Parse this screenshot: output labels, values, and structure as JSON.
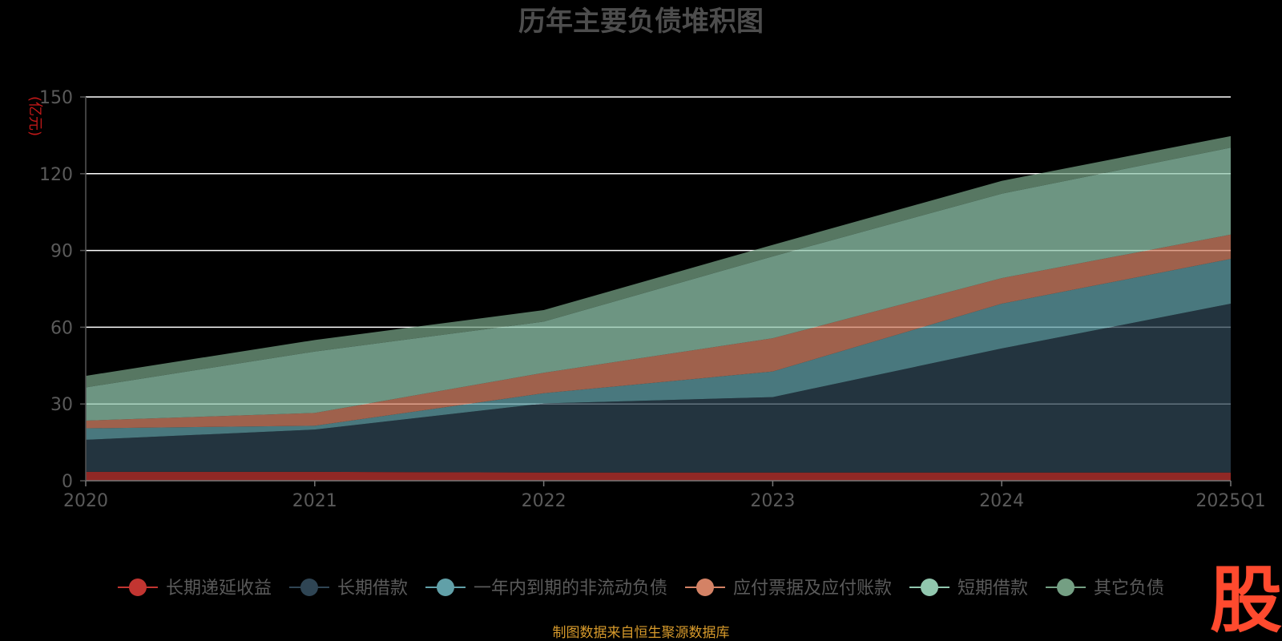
{
  "chart_data": {
    "type": "area",
    "stacked": true,
    "title": "历年主要负债堆积图",
    "unit": "(亿元)",
    "x": [
      "2020",
      "2021",
      "2022",
      "2023",
      "2024",
      "2025Q1"
    ],
    "ylim": [
      0,
      150
    ],
    "yticks": [
      "0",
      "30",
      "60",
      "90",
      "120",
      "150"
    ],
    "grid": true,
    "legend_position": "bottom",
    "series": [
      {
        "name": "长期递延收益",
        "color": "#c23531",
        "values": [
          3.5,
          3.5,
          3.2,
          3.2,
          3.2,
          3.2
        ]
      },
      {
        "name": "长期借款",
        "color": "#2f4554",
        "values": [
          12.5,
          16.5,
          27.0,
          29.5,
          48.5,
          66.0
        ]
      },
      {
        "name": "一年内到期的非流动负债",
        "color": "#61a0a8",
        "values": [
          4.5,
          1.5,
          4.0,
          10.0,
          17.5,
          17.5
        ]
      },
      {
        "name": "应付票据及应付账款",
        "color": "#d48265",
        "values": [
          3.0,
          5.0,
          8.0,
          13.0,
          10.0,
          9.5
        ]
      },
      {
        "name": "短期借款",
        "color": "#91c7ae",
        "values": [
          13.0,
          24.0,
          20.0,
          32.0,
          33.0,
          34.0
        ]
      },
      {
        "name": "其它负债",
        "color": "#749f83",
        "values": [
          4.5,
          4.5,
          4.5,
          4.5,
          5.0,
          4.5
        ]
      }
    ]
  },
  "source_text": "制图数据来自恒生聚源数据库",
  "logo_text": "股"
}
